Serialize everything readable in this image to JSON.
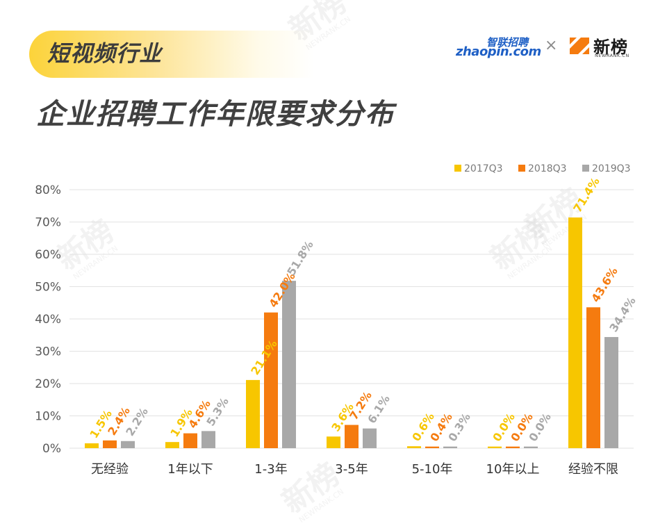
{
  "header": {
    "tag": "短视频行业",
    "title": "企业招聘工作年限要求分布"
  },
  "logos": {
    "zhaopin_cn": "智联招聘",
    "zhaopin_en": "zhaopin.com",
    "separator": "×",
    "newrank_cn": "新榜",
    "newrank_en": "NEWRANK.CN"
  },
  "watermark": {
    "text_cn": "新榜",
    "text_en": "NEWRANK.CN"
  },
  "colors": {
    "series_2017": "#f7c600",
    "series_2018": "#f57b0f",
    "series_2019": "#a8a8a8",
    "grid": "#e2e2e2",
    "axis_text": "#595959",
    "tag_yellow": "#fcd33a",
    "brand_orange": "#f57b0f"
  },
  "chart_data": {
    "type": "bar",
    "categories": [
      "无经验",
      "1年以下",
      "1-3年",
      "3-5年",
      "5-10年",
      "10年以上",
      "经验不限"
    ],
    "series": [
      {
        "name": "2017Q3",
        "values": [
          1.5,
          1.9,
          21.1,
          3.6,
          0.6,
          0.0,
          71.4
        ],
        "labels": [
          "1.5%",
          "1.9%",
          "21.1%",
          "3.6%",
          "0.6%",
          "0.0%",
          "71.4%"
        ]
      },
      {
        "name": "2018Q3",
        "values": [
          2.4,
          4.6,
          42.0,
          7.2,
          0.4,
          0.0,
          43.6
        ],
        "labels": [
          "2.4%",
          "4.6%",
          "42.0%",
          "7.2%",
          "0.4%",
          "0.0%",
          "43.6%"
        ]
      },
      {
        "name": "2019Q3",
        "values": [
          2.2,
          5.3,
          51.8,
          6.1,
          0.3,
          0.0,
          34.4
        ],
        "labels": [
          "2.2%",
          "5.3%",
          "51.8%",
          "6.1%",
          "0.3%",
          "0.0%",
          "34.4%"
        ]
      }
    ],
    "yticks": [
      "0%",
      "10%",
      "20%",
      "30%",
      "40%",
      "50%",
      "60%",
      "70%",
      "80%"
    ],
    "ylim": [
      0,
      80
    ],
    "grid": true,
    "legend_position": "top-right",
    "data_labels_rotated": true
  }
}
